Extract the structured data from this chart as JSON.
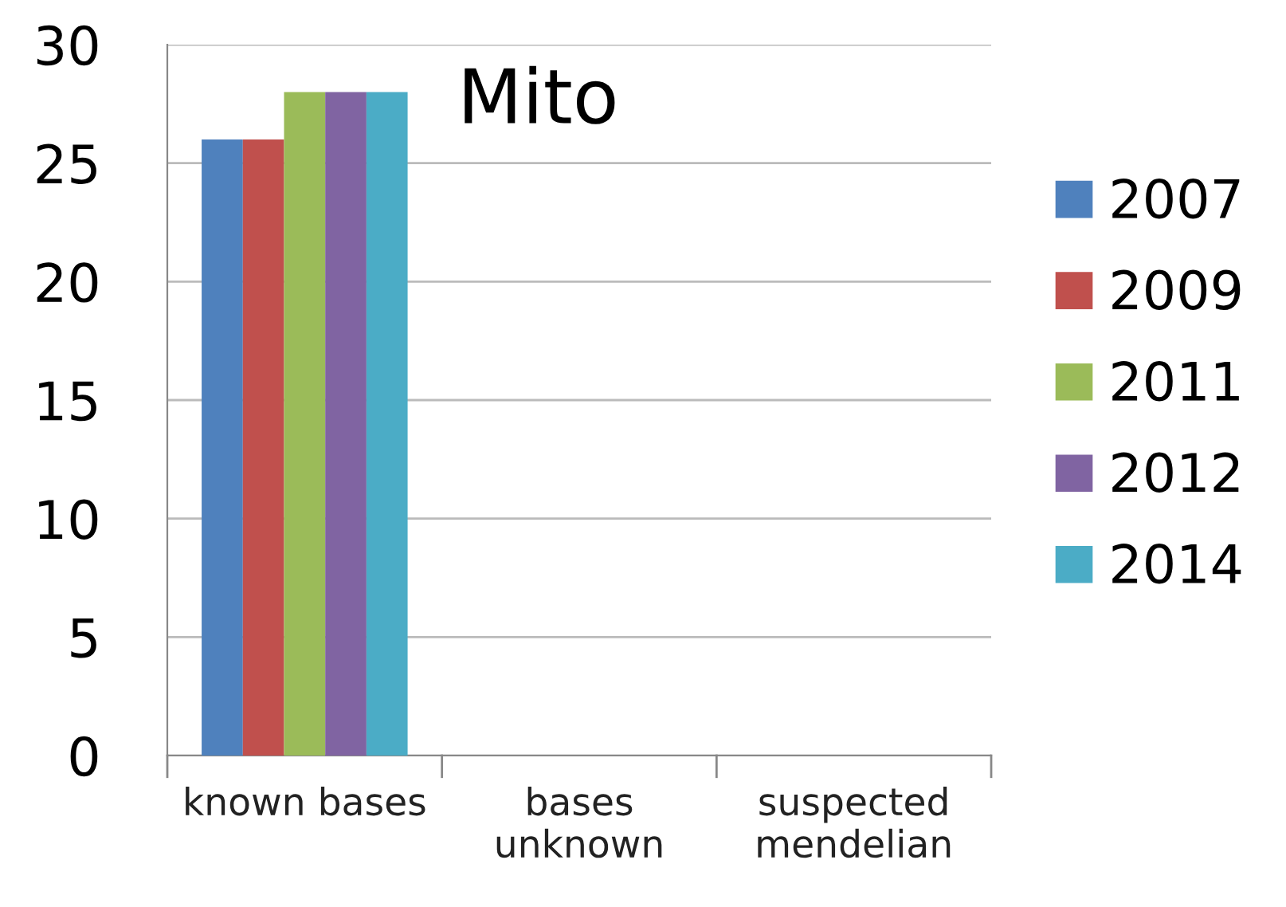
{
  "chart_data": {
    "type": "bar",
    "title": "Mito",
    "categories": [
      "known bases",
      "bases\nunknown",
      "suspected\nmendelian"
    ],
    "series": [
      {
        "name": "2007",
        "color": "#4f81bd",
        "values": [
          26,
          0,
          0
        ]
      },
      {
        "name": "2009",
        "color": "#c0504d",
        "values": [
          26,
          0,
          0
        ]
      },
      {
        "name": "2011",
        "color": "#9bbb59",
        "values": [
          28,
          0,
          0
        ]
      },
      {
        "name": "2012",
        "color": "#8064a2",
        "values": [
          28,
          0,
          0
        ]
      },
      {
        "name": "2014",
        "color": "#4bacc6",
        "values": [
          28,
          0,
          0
        ]
      }
    ],
    "ylim": [
      0,
      30
    ],
    "yticks": [
      0,
      5,
      10,
      15,
      20,
      25,
      30
    ],
    "grid": "y",
    "legend": "right"
  }
}
